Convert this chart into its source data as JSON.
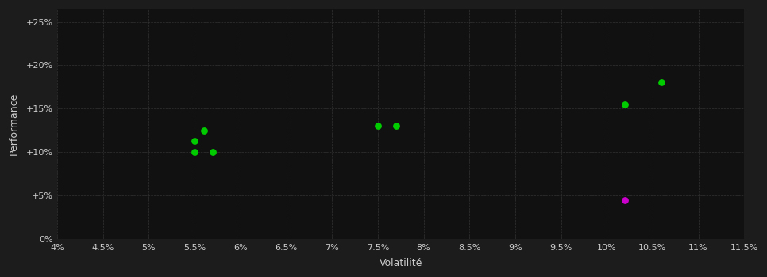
{
  "background_color": "#1c1c1c",
  "plot_bg_color": "#111111",
  "grid_color": "#333333",
  "text_color": "#cccccc",
  "xlabel": "Volatilité",
  "ylabel": "Performance",
  "xlim": [
    0.04,
    0.115
  ],
  "ylim": [
    0.0,
    0.265
  ],
  "xticks": [
    0.04,
    0.045,
    0.05,
    0.055,
    0.06,
    0.065,
    0.07,
    0.075,
    0.08,
    0.085,
    0.09,
    0.095,
    0.1,
    0.105,
    0.11,
    0.115
  ],
  "xtick_labels": [
    "4%",
    "4.5%",
    "5%",
    "5.5%",
    "6%",
    "6.5%",
    "7%",
    "7.5%",
    "8%",
    "8.5%",
    "9%",
    "9.5%",
    "10%",
    "10.5%",
    "11%",
    "11.5%"
  ],
  "yticks": [
    0.0,
    0.05,
    0.1,
    0.15,
    0.2,
    0.25
  ],
  "ytick_labels": [
    "0%",
    "+5%",
    "+10%",
    "+15%",
    "+20%",
    "+25%"
  ],
  "green_points": [
    [
      0.055,
      0.1
    ],
    [
      0.057,
      0.1
    ],
    [
      0.055,
      0.113
    ],
    [
      0.056,
      0.125
    ],
    [
      0.075,
      0.13
    ],
    [
      0.077,
      0.13
    ],
    [
      0.102,
      0.155
    ],
    [
      0.106,
      0.18
    ]
  ],
  "pink_points": [
    [
      0.102,
      0.045
    ]
  ],
  "green_color": "#00cc00",
  "pink_color": "#cc00cc",
  "dot_size": 28,
  "font_size_ticks": 8,
  "font_size_labels": 9
}
